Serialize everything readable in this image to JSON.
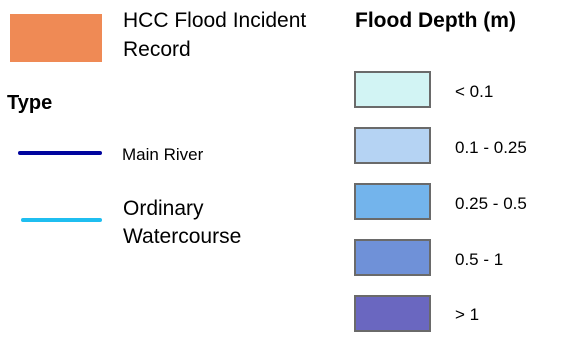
{
  "flood_incident": {
    "label": "HCC Flood Incident Record",
    "color": "#ef8a55"
  },
  "type_legend": {
    "heading": "Type",
    "items": [
      {
        "label": "Main River",
        "color": "#00049e"
      },
      {
        "label": "Ordinary Watercourse",
        "color": "#1fbef0"
      }
    ]
  },
  "depth_legend": {
    "heading": "Flood Depth (m)",
    "items": [
      {
        "label": "< 0.1",
        "color": "#d2f4f4"
      },
      {
        "label": "0.1 - 0.25",
        "color": "#b5d3f3"
      },
      {
        "label": "0.25 - 0.5",
        "color": "#73b4ec"
      },
      {
        "label": "0.5 - 1",
        "color": "#6f91d8"
      },
      {
        "label": "> 1",
        "color": "#6a67c0"
      }
    ]
  }
}
